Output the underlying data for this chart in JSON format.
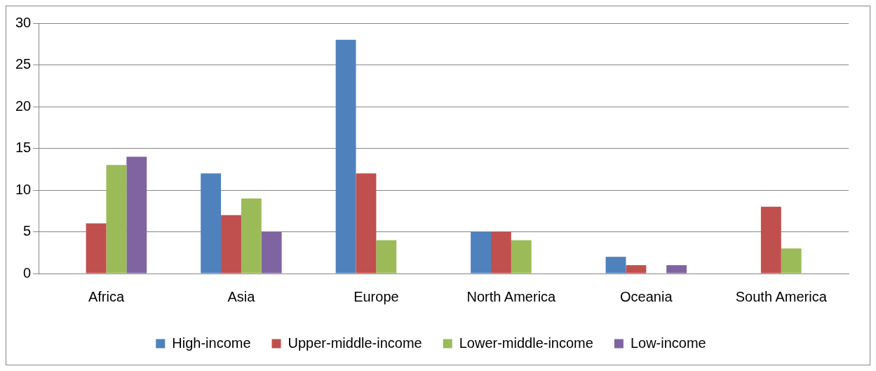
{
  "chart_data": {
    "type": "bar",
    "categories": [
      "Africa",
      "Asia",
      "Europe",
      "North America",
      "Oceania",
      "South America"
    ],
    "series": [
      {
        "name": "High-income",
        "color": "#4f81bd",
        "values": [
          0,
          12,
          28,
          5,
          2,
          0
        ]
      },
      {
        "name": "Upper-middle-income",
        "color": "#c0504d",
        "values": [
          6,
          7,
          12,
          5,
          1,
          8
        ]
      },
      {
        "name": "Lower-middle-income",
        "color": "#9bbb59",
        "values": [
          13,
          9,
          4,
          4,
          0,
          3
        ]
      },
      {
        "name": "Low-income",
        "color": "#8064a2",
        "values": [
          14,
          5,
          0,
          0,
          1,
          0
        ]
      }
    ],
    "ylim": [
      0,
      30
    ],
    "yticks": [
      0,
      5,
      10,
      15,
      20,
      25,
      30
    ],
    "grid": "y",
    "legend": "bottom"
  }
}
